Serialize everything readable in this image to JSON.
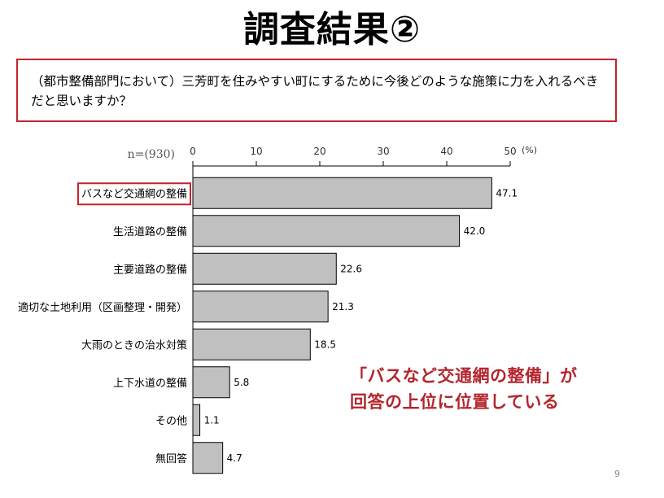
{
  "title": "調査結果②",
  "question": "（都市整備部門において）三芳町を住みやすい町にするために今後どのような施策に力を入れるべきだと思いますか？",
  "note": {
    "line1": "「バスなど交通網の整備」が",
    "line2": "回答の上位に位置している"
  },
  "page_number": "9",
  "colors": {
    "bar_fill": "#c0c0c0",
    "bar_stroke": "#000000",
    "highlight": "#c0242e",
    "note_text": "#b3262d"
  },
  "chart_data": {
    "type": "bar",
    "orientation": "horizontal",
    "sample_label": "n=(930)",
    "unit": "(%)",
    "xlim": [
      0,
      50
    ],
    "ticks": [
      0,
      10,
      20,
      30,
      40,
      50
    ],
    "highlighted_category": "バスなど交通網の整備",
    "categories": [
      "バスなど交通網の整備",
      "生活道路の整備",
      "主要道路の整備",
      "適切な土地利用（区画整理・開発）",
      "大雨のときの治水対策",
      "上下水道の整備",
      "その他",
      "無回答"
    ],
    "values": [
      47.1,
      42.0,
      22.6,
      21.3,
      18.5,
      5.8,
      1.1,
      4.7
    ],
    "value_labels": [
      "47.1",
      "42.0",
      "22.6",
      "21.3",
      "18.5",
      "5.8",
      "1.1",
      "4.7"
    ]
  }
}
